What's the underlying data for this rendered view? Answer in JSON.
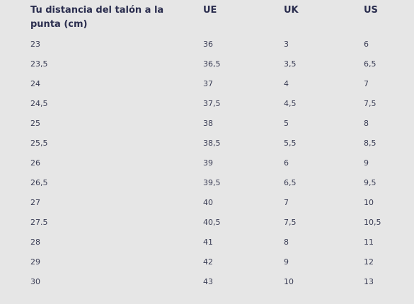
{
  "table": {
    "headers": [
      "Tu distancia del talón a la punta (cm)",
      "UE",
      "UK",
      "US"
    ],
    "rows": [
      [
        "23",
        "36",
        "3",
        "6"
      ],
      [
        "23,5",
        "36,5",
        "3,5",
        "6,5"
      ],
      [
        "24",
        "37",
        "4",
        "7"
      ],
      [
        "24,5",
        "37,5",
        "4,5",
        "7,5"
      ],
      [
        "25",
        "38",
        "5",
        "8"
      ],
      [
        "25,5",
        "38,5",
        "5,5",
        "8,5"
      ],
      [
        "26",
        "39",
        "6",
        "9"
      ],
      [
        "26,5",
        "39,5",
        "6,5",
        "9,5"
      ],
      [
        "27",
        "40",
        "7",
        "10"
      ],
      [
        "27.5",
        "40,5",
        "7,5",
        "10,5"
      ],
      [
        "28",
        "41",
        "8",
        "11"
      ],
      [
        "29",
        "42",
        "9",
        "12"
      ],
      [
        "30",
        "43",
        "10",
        "13"
      ]
    ]
  }
}
